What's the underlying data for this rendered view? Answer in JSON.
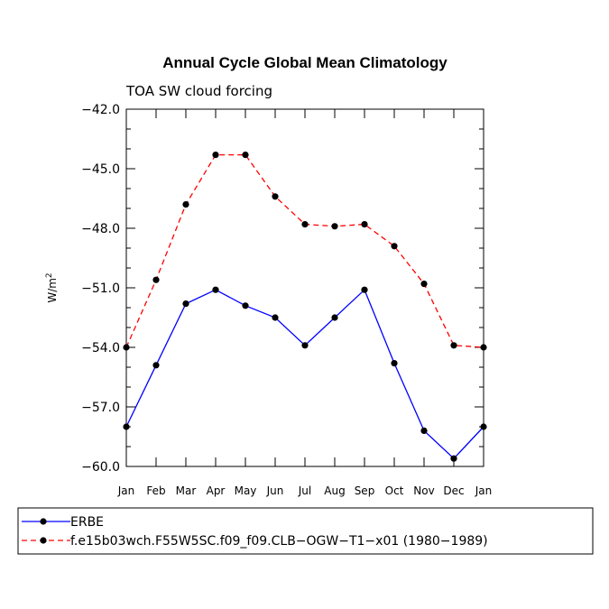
{
  "chart_data": {
    "type": "line",
    "title": "Annual Cycle Global Mean Climatology",
    "subtitle": "TOA SW cloud forcing",
    "ylabel": "W/m",
    "ylabel_superscript": "2",
    "categories": [
      "Jan",
      "Feb",
      "Mar",
      "Apr",
      "May",
      "Jun",
      "Jul",
      "Aug",
      "Sep",
      "Oct",
      "Nov",
      "Dec",
      "Jan"
    ],
    "ylim": [
      -60.0,
      -42.0
    ],
    "yticks": [
      -42.0,
      -45.0,
      -48.0,
      -51.0,
      -54.0,
      -57.0,
      -60.0
    ],
    "ytick_labels": [
      "−42.0",
      "−45.0",
      "−48.0",
      "−51.0",
      "−54.0",
      "−57.0",
      "−60.0"
    ],
    "legend_position": "bottom",
    "series": [
      {
        "name": "ERBE",
        "color": "#0000ff",
        "dash": "solid",
        "values": [
          -58.0,
          -54.9,
          -51.8,
          -51.1,
          -51.9,
          -52.5,
          -53.9,
          -52.5,
          -51.1,
          -54.8,
          -58.2,
          -59.6,
          -58.0
        ]
      },
      {
        "name": "f.e15b03wch.F55W5SC.f09_f09.CLB−OGW−T1−x01 (1980−1989)",
        "color": "#ff0000",
        "dash": "dashed",
        "values": [
          -54.0,
          -50.6,
          -46.8,
          -44.3,
          -44.3,
          -46.4,
          -47.8,
          -47.9,
          -47.8,
          -48.9,
          -50.8,
          -53.9,
          -54.0
        ]
      }
    ]
  }
}
